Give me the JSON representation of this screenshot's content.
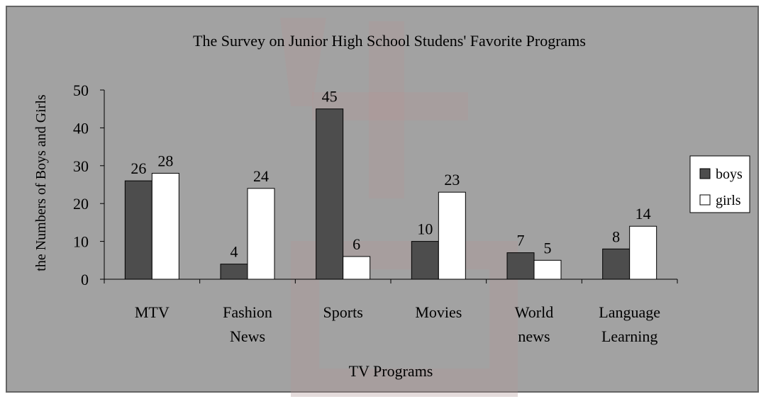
{
  "chart_data": {
    "type": "bar",
    "title": "The Survey on  Junior High School Studens' Favorite Programs",
    "xlabel": "TV Programs",
    "ylabel": "the Numbers of Boys and Girls",
    "ylim": [
      0,
      50
    ],
    "yticks": [
      "0",
      "10",
      "20",
      "30",
      "40",
      "50"
    ],
    "categories": [
      [
        "MTV"
      ],
      [
        "Fashion",
        "News"
      ],
      [
        "Sports"
      ],
      [
        "Movies"
      ],
      [
        "World",
        "news"
      ],
      [
        "Language",
        "Learning"
      ]
    ],
    "series": [
      {
        "name": "boys",
        "values": [
          26,
          4,
          45,
          10,
          7,
          8
        ],
        "color": "#4d4d4d"
      },
      {
        "name": "girls",
        "values": [
          28,
          24,
          6,
          23,
          5,
          14
        ],
        "color": "#ffffff"
      }
    ],
    "legend": "right",
    "grid": false,
    "plot_background": "#999999"
  }
}
